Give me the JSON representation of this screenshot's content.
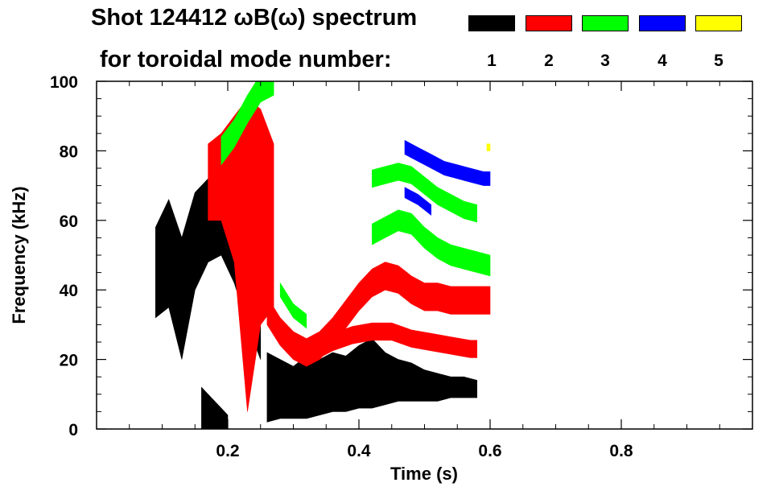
{
  "title": {
    "prefix": "Shot",
    "shot": "124412",
    "quantity": "ωB(ω)",
    "suffix": "spectrum",
    "line2": "for toroidal mode number:"
  },
  "legend": [
    {
      "label": "1",
      "color": "#000000"
    },
    {
      "label": "2",
      "color": "#ff0000"
    },
    {
      "label": "3",
      "color": "#00ff00"
    },
    {
      "label": "4",
      "color": "#0000ff"
    },
    {
      "label": "5",
      "color": "#ffff00"
    }
  ],
  "chart_data": {
    "type": "spectrogram",
    "xlabel": "Time (s)",
    "ylabel": "Frequency (kHz)",
    "xlim": [
      0.0,
      1.0
    ],
    "ylim": [
      0,
      100
    ],
    "xticks": [
      0.2,
      0.4,
      0.6,
      0.8
    ],
    "xtick_labels": [
      "0.2",
      "0.4",
      "0.6",
      "0.8"
    ],
    "yticks": [
      0,
      20,
      40,
      60,
      80,
      100
    ],
    "ytick_labels": [
      "0",
      "20",
      "40",
      "60",
      "80",
      "100"
    ],
    "grid": false,
    "legend_placement": "top-right",
    "series": [
      {
        "name": "1",
        "color": "#000000",
        "regions": [
          {
            "t": [
              0.09,
              0.11,
              0.13,
              0.15,
              0.17,
              0.19,
              0.21,
              0.23,
              0.25
            ],
            "f_low": [
              32,
              35,
              20,
              40,
              48,
              50,
              42,
              30,
              20
            ],
            "f_high": [
              58,
              66,
              55,
              68,
              72,
              70,
              68,
              62,
              55
            ]
          },
          {
            "t": [
              0.16,
              0.18,
              0.2
            ],
            "f_low": [
              0,
              0,
              0
            ],
            "f_high": [
              12,
              8,
              4
            ]
          },
          {
            "t": [
              0.26,
              0.28,
              0.3,
              0.32,
              0.34,
              0.36,
              0.38,
              0.4,
              0.42,
              0.44,
              0.46,
              0.48,
              0.5,
              0.52,
              0.54,
              0.56,
              0.58
            ],
            "f_low": [
              2,
              3,
              3,
              3,
              4,
              5,
              5,
              6,
              6,
              7,
              8,
              8,
              8,
              8,
              9,
              9,
              9
            ],
            "f_high": [
              22,
              20,
              18,
              21,
              20,
              22,
              21,
              24,
              26,
              22,
              20,
              19,
              17,
              16,
              15,
              15,
              14
            ]
          }
        ]
      },
      {
        "name": "2",
        "color": "#ff0000",
        "regions": [
          {
            "t": [
              0.17,
              0.19,
              0.21,
              0.23,
              0.25,
              0.27
            ],
            "f_low": [
              60,
              60,
              48,
              5,
              30,
              35
            ],
            "f_high": [
              82,
              85,
              90,
              95,
              92,
              82
            ]
          },
          {
            "t": [
              0.26,
              0.28,
              0.3,
              0.32,
              0.34,
              0.36,
              0.38,
              0.4,
              0.42,
              0.44,
              0.46,
              0.48,
              0.5,
              0.52,
              0.54,
              0.56,
              0.58,
              0.6
            ],
            "f": [
              34,
              28,
              24,
              22,
              24,
              28,
              33,
              38,
              42,
              44,
              43,
              40,
              38,
              38,
              37,
              37,
              37,
              37
            ],
            "width": 4
          },
          {
            "t": [
              0.33,
              0.36,
              0.39,
              0.42,
              0.45,
              0.48,
              0.51,
              0.54,
              0.57,
              0.58
            ],
            "f": [
              22,
              25,
              27,
              28,
              28,
              26,
              25,
              24,
              23,
              23
            ],
            "width": 2.5
          }
        ]
      },
      {
        "name": "3",
        "color": "#00ff00",
        "regions": [
          {
            "t": [
              0.19,
              0.21,
              0.23,
              0.25,
              0.27
            ],
            "f": [
              80,
              85,
              92,
              98,
              100
            ],
            "width": 4
          },
          {
            "t": [
              0.28,
              0.3,
              0.32
            ],
            "f": [
              40,
              34,
              31
            ],
            "width": 2
          },
          {
            "t": [
              0.42,
              0.44,
              0.46,
              0.48,
              0.5,
              0.52,
              0.54,
              0.56,
              0.58,
              0.6
            ],
            "f": [
              56,
              58,
              60,
              59,
              55,
              52,
              50,
              49,
              48,
              47
            ],
            "width": 3
          },
          {
            "t": [
              0.42,
              0.44,
              0.46,
              0.48,
              0.5,
              0.52,
              0.54,
              0.56,
              0.58
            ],
            "f": [
              72,
              73,
              74,
              73,
              70,
              67,
              65,
              63,
              62
            ],
            "width": 2.5
          }
        ]
      },
      {
        "name": "4",
        "color": "#0000ff",
        "regions": [
          {
            "t": [
              0.47,
              0.49,
              0.51,
              0.53,
              0.55,
              0.57,
              0.59,
              0.6
            ],
            "f": [
              81,
              79,
              77,
              75,
              74,
              73,
              72,
              72
            ],
            "width": 2
          },
          {
            "t": [
              0.47,
              0.49,
              0.51
            ],
            "f": [
              68,
              66,
              63
            ],
            "width": 1.5
          }
        ]
      },
      {
        "name": "5",
        "color": "#ffff00",
        "regions": [
          {
            "t": [
              0.595,
              0.6
            ],
            "f": [
              81,
              81
            ],
            "width": 1
          }
        ]
      }
    ]
  }
}
